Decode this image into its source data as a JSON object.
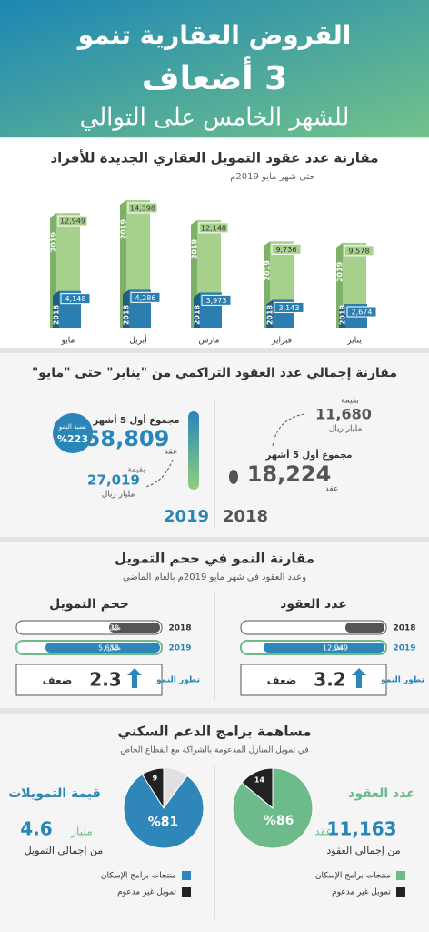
{
  "header": {
    "line1": "القروض العقارية تنمو",
    "line2": "3 أضعاف",
    "line3": "للشهر الخامس على التوالي"
  },
  "chart_data": [
    {
      "type": "bar",
      "title": "مقارنة عدد عقود التمويل العقاري الجديدة للأفراد",
      "subtitle": "حتى شهر مايو 2019م",
      "categories": [
        "مايو",
        "أبريل",
        "مارس",
        "فبراير",
        "يناير"
      ],
      "series": [
        {
          "name": "2019",
          "color": "#a8d08d",
          "values": [
            12949,
            14398,
            12148,
            9736,
            9578
          ],
          "value_labels": [
            "12,949",
            "14,398",
            "12,148",
            "9,736",
            "9,578"
          ]
        },
        {
          "name": "2018",
          "color": "#2a7fb0",
          "values": [
            4148,
            4286,
            3973,
            3143,
            2674
          ],
          "value_labels": [
            "4,148",
            "4,286",
            "3,973",
            "3,143",
            "2,674"
          ]
        }
      ]
    },
    {
      "type": "pie",
      "categories": [
        "منتجات برامج الإسكان",
        "تمويل غير مدعوم"
      ],
      "values": [
        81,
        9
      ],
      "value_labels": [
        "%81",
        "9"
      ],
      "colors": [
        "#2f86b8",
        "#222222"
      ]
    },
    {
      "type": "pie",
      "categories": [
        "منتجات برامج الإسكان",
        "تمويل غير مدعوم"
      ],
      "values": [
        86,
        14
      ],
      "value_labels": [
        "%86",
        "14"
      ],
      "colors": [
        "#6dbb8a",
        "#222222"
      ]
    }
  ],
  "cumulative": {
    "title": "مقارنة إجمالي عدد العقود التراكمي من \"يناير\" حتى \"مايو\"",
    "y2019": {
      "year": "2019",
      "sum_label": "مجموع أول 5 أشهر",
      "contracts": "58,809",
      "contracts_unit": "عقد",
      "growth_label": "نسبة النمو",
      "growth": "%223",
      "value_label": "بقيمة",
      "value": "27,019",
      "value_unit": "مليار ريال"
    },
    "y2018": {
      "year": "2018",
      "sum_label": "مجموع أول 5 أشهر",
      "contracts": "18,224",
      "contracts_unit": "عقد",
      "value_label": "بقيمة",
      "value": "11,680",
      "value_unit": "مليار ريال"
    }
  },
  "growth": {
    "title": "مقارنة النمو في حجم التمويل",
    "subtitle": "وعدد العقود في شهر مايو 2019م بالعام الماضي",
    "financing": {
      "heading": "حجم التمويل",
      "rows": [
        {
          "year": "2018",
          "value": "2,539",
          "unit": "مليار"
        },
        {
          "year": "2019",
          "value": "5,653",
          "unit": "مليار"
        }
      ],
      "label": "تطور النمو",
      "factor": "2.3",
      "factor_unit": "ضعف"
    },
    "contracts": {
      "heading": "عدد العقود",
      "rows": [
        {
          "year": "2018",
          "value": "4,148",
          "unit": "عقد"
        },
        {
          "year": "2019",
          "value": "12,949",
          "unit": "عقد"
        }
      ],
      "label": "تطور النمو",
      "factor": "3.2",
      "factor_unit": "ضعف"
    }
  },
  "support": {
    "title": "مساهمة برامج الدعم السكني",
    "subtitle": "في تمويل المنازل المدعومة بالشراكة مع القطاع الخاص",
    "financing": {
      "heading": "قيمة التمويلات",
      "value": "4.6",
      "unit": "مليار",
      "note": "من إجمالي التمويل"
    },
    "contracts": {
      "heading": "عدد العقود",
      "value": "11,163",
      "unit": "عقد",
      "note": "من إجمالي العقود"
    }
  }
}
